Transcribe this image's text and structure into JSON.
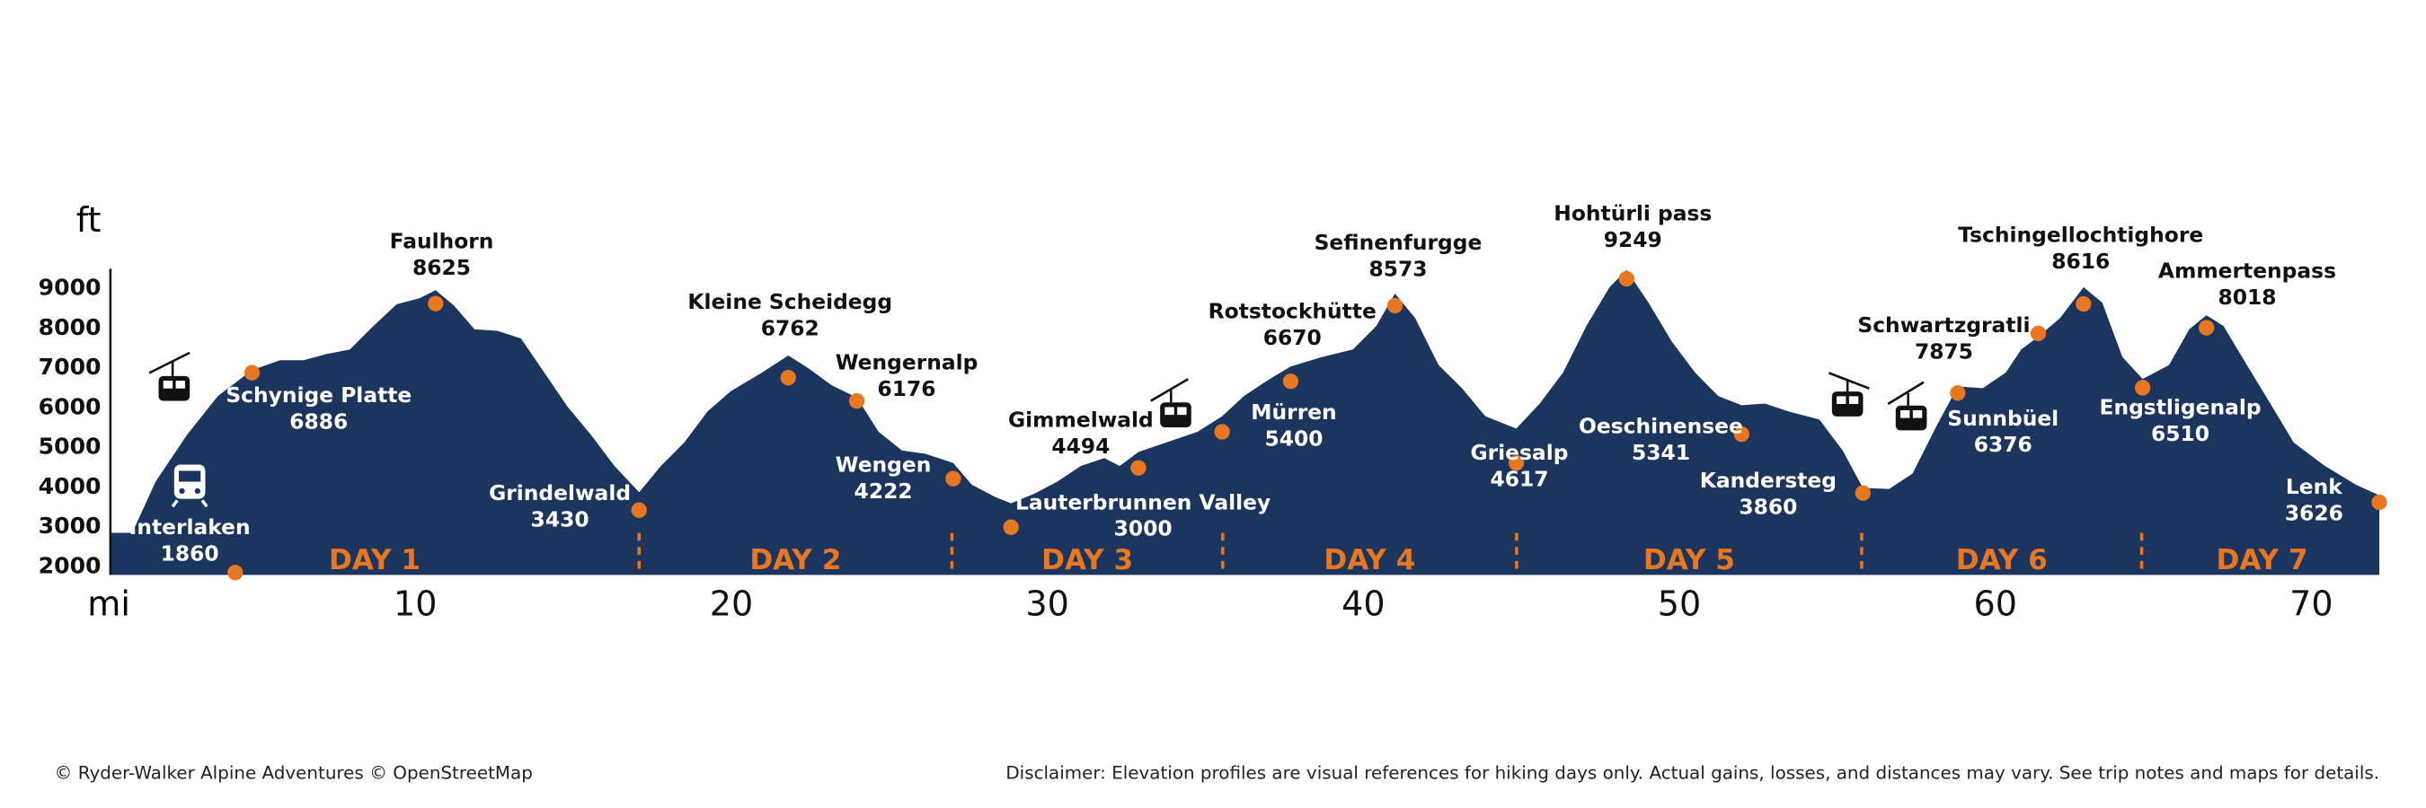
{
  "chart_data": {
    "type": "area",
    "color": "#1b355e",
    "marker_color": "#e87722",
    "x_label": "mi",
    "y_label": "ft",
    "xlim": [
      0.35,
      72.25
    ],
    "ylim": [
      1800,
      9500
    ],
    "xticks": [
      10,
      20,
      30,
      40,
      50,
      60,
      70
    ],
    "yticks": [
      2000,
      3000,
      4000,
      5000,
      6000,
      7000,
      8000,
      9000
    ],
    "grid": false,
    "x": [
      0.35,
      1.04,
      1.78,
      2.77,
      3.75,
      4.83,
      5.72,
      6.46,
      7.2,
      7.93,
      8.67,
      9.41,
      10.14,
      10.64,
      11.23,
      11.87,
      12.6,
      13.34,
      14.08,
      14.82,
      15.56,
      16.3,
      17.08,
      17.77,
      18.51,
      19.25,
      19.98,
      20.97,
      21.8,
      22.44,
      23.18,
      23.97,
      24.66,
      25.4,
      26.13,
      27.02,
      27.61,
      28.35,
      28.85,
      29.58,
      30.32,
      31.06,
      31.8,
      32.29,
      32.88,
      33.76,
      34.75,
      35.53,
      36.22,
      36.96,
      37.7,
      38.68,
      39.67,
      40.41,
      41.0,
      41.64,
      42.38,
      43.12,
      43.86,
      44.84,
      45.58,
      46.32,
      47.06,
      47.79,
      48.33,
      49.02,
      49.76,
      50.5,
      51.23,
      51.97,
      52.71,
      53.45,
      54.43,
      55.17,
      55.81,
      56.64,
      57.38,
      58.12,
      58.81,
      59.6,
      60.33,
      60.82,
      61.36,
      62.05,
      62.79,
      63.38,
      64.02,
      64.66,
      65.5,
      66.14,
      66.68,
      67.22,
      67.96,
      68.7,
      69.44,
      70.43,
      71.41,
      72.15
    ],
    "values": [
      2860,
      2860,
      4150,
      5320,
      6300,
      6950,
      7200,
      7200,
      7360,
      7470,
      8060,
      8610,
      8760,
      8960,
      8570,
      7980,
      7940,
      7750,
      6890,
      6030,
      5320,
      4540,
      3880,
      4540,
      5130,
      5910,
      6420,
      6890,
      7320,
      7000,
      6570,
      6260,
      5400,
      4930,
      4850,
      4620,
      4070,
      3760,
      3600,
      3840,
      4150,
      4540,
      4740,
      4540,
      4890,
      5130,
      5400,
      5790,
      6300,
      6690,
      7040,
      7280,
      7470,
      8060,
      8880,
      8260,
      7080,
      6500,
      5790,
      5480,
      6110,
      6890,
      8060,
      9040,
      9470,
      8650,
      7670,
      6890,
      6300,
      6070,
      6110,
      5910,
      5710,
      4930,
      3990,
      3960,
      4350,
      5520,
      6540,
      6500,
      6890,
      7470,
      7790,
      8260,
      9040,
      8650,
      7280,
      6730,
      7080,
      7980,
      8330,
      8060,
      7080,
      6110,
      5130,
      4540,
      4070,
      3800
    ],
    "waypoints": [
      {
        "name": "Interlaken",
        "elevation": 1860,
        "mile": 4.3
      },
      {
        "name": "Schynige Platte",
        "elevation": 6886,
        "mile": 4.83
      },
      {
        "name": "Faulhorn",
        "elevation": 8625,
        "mile": 10.64
      },
      {
        "name": "Grindelwald",
        "elevation": 3430,
        "mile": 17.08
      },
      {
        "name": "Kleine Scheidegg",
        "elevation": 6762,
        "mile": 21.8
      },
      {
        "name": "Wengernalp",
        "elevation": 6176,
        "mile": 23.97
      },
      {
        "name": "Wengen",
        "elevation": 4222,
        "mile": 27.02
      },
      {
        "name": "Lauterbrunnen Valley",
        "elevation": 3000,
        "mile": 28.85
      },
      {
        "name": "Gimmelwald",
        "elevation": 4494,
        "mile": 32.88
      },
      {
        "name": "Mürren",
        "elevation": 5400,
        "mile": 35.53
      },
      {
        "name": "Rotstockhütte",
        "elevation": 6670,
        "mile": 37.7
      },
      {
        "name": "Sefinenfurgge",
        "elevation": 8573,
        "mile": 41.0
      },
      {
        "name": "Griesalp",
        "elevation": 4617,
        "mile": 44.84
      },
      {
        "name": "Hohtürli pass",
        "elevation": 9249,
        "mile": 48.33
      },
      {
        "name": "Oeschinensee",
        "elevation": 5341,
        "mile": 51.97
      },
      {
        "name": "Kandersteg",
        "elevation": 3860,
        "mile": 55.81
      },
      {
        "name": "Sunnbüel",
        "elevation": 6376,
        "mile": 58.81
      },
      {
        "name": "Schwartzgratli",
        "elevation": 7875,
        "mile": 61.36
      },
      {
        "name": "Tschingellochtighore",
        "elevation": 8616,
        "mile": 62.79
      },
      {
        "name": "Engstligenalp",
        "elevation": 6510,
        "mile": 64.66
      },
      {
        "name": "Ammertenpass",
        "elevation": 8018,
        "mile": 66.68
      },
      {
        "name": "Lenk",
        "elevation": 3626,
        "mile": 72.15
      }
    ],
    "days": [
      "DAY 1",
      "DAY 2",
      "DAY 3",
      "DAY 4",
      "DAY 5",
      "DAY 6",
      "DAY 7"
    ],
    "day_boundaries": [
      17.08,
      26.98,
      35.55,
      44.85,
      55.77,
      64.63
    ]
  },
  "credit": "© Ryder-Walker Alpine Adventures © OpenStreetMap",
  "disclaimer": "Disclaimer: Elevation profiles are visual references for hiking days only. Actual gains, losses, and distances may vary. See trip notes and maps for details."
}
